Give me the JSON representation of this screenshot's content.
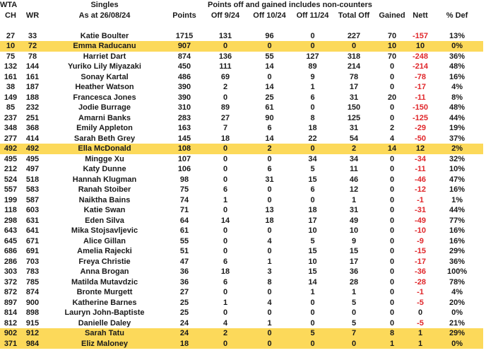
{
  "header": {
    "wta": "WTA",
    "singles": "Singles",
    "note": "Points off and gained includes non-counters",
    "columns": [
      "CH",
      "WR",
      "As at 26/08/24",
      "Points",
      "Off 9/24",
      "Off 10/24",
      "Off 11/24",
      "Total Off",
      "Gained",
      "Nett",
      "% Def"
    ]
  },
  "highlight_color": "#fcd95a",
  "negative_color": "#e0262a",
  "rows": [
    {
      "cells": [
        "27",
        "33",
        "Katie Boulter",
        "1715",
        "131",
        "96",
        "0",
        "227",
        "70",
        "-157",
        "13%"
      ],
      "highlight": false
    },
    {
      "cells": [
        "10",
        "72",
        "Emma Raducanu",
        "907",
        "0",
        "0",
        "0",
        "0",
        "10",
        "10",
        "0%"
      ],
      "highlight": true
    },
    {
      "cells": [
        "75",
        "78",
        "Harriet Dart",
        "874",
        "136",
        "55",
        "127",
        "318",
        "70",
        "-248",
        "36%"
      ],
      "highlight": false
    },
    {
      "cells": [
        "132",
        "144",
        "Yuriko Lily Miyazaki",
        "450",
        "111",
        "14",
        "89",
        "214",
        "0",
        "-214",
        "48%"
      ],
      "highlight": false
    },
    {
      "cells": [
        "161",
        "161",
        "Sonay Kartal",
        "486",
        "69",
        "0",
        "9",
        "78",
        "0",
        "-78",
        "16%"
      ],
      "highlight": false
    },
    {
      "cells": [
        "38",
        "187",
        "Heather Watson",
        "390",
        "2",
        "14",
        "1",
        "17",
        "0",
        "-17",
        "4%"
      ],
      "highlight": false
    },
    {
      "cells": [
        "149",
        "188",
        "Francesca Jones",
        "390",
        "0",
        "25",
        "6",
        "31",
        "20",
        "-11",
        "8%"
      ],
      "highlight": false
    },
    {
      "cells": [
        "85",
        "232",
        "Jodie Burrage",
        "310",
        "89",
        "61",
        "0",
        "150",
        "0",
        "-150",
        "48%"
      ],
      "highlight": false
    },
    {
      "cells": [
        "237",
        "251",
        "Amarni Banks",
        "283",
        "27",
        "90",
        "8",
        "125",
        "0",
        "-125",
        "44%"
      ],
      "highlight": false
    },
    {
      "cells": [
        "348",
        "368",
        "Emily Appleton",
        "163",
        "7",
        "6",
        "18",
        "31",
        "2",
        "-29",
        "19%"
      ],
      "highlight": false
    },
    {
      "cells": [
        "277",
        "414",
        "Sarah Beth Grey",
        "145",
        "18",
        "14",
        "22",
        "54",
        "4",
        "-50",
        "37%"
      ],
      "highlight": false
    },
    {
      "cells": [
        "492",
        "492",
        "Ella McDonald",
        "108",
        "0",
        "2",
        "0",
        "2",
        "14",
        "12",
        "2%"
      ],
      "highlight": true
    },
    {
      "cells": [
        "495",
        "495",
        "Mingge Xu",
        "107",
        "0",
        "0",
        "34",
        "34",
        "0",
        "-34",
        "32%"
      ],
      "highlight": false
    },
    {
      "cells": [
        "212",
        "497",
        "Katy Dunne",
        "106",
        "0",
        "6",
        "5",
        "11",
        "0",
        "-11",
        "10%"
      ],
      "highlight": false
    },
    {
      "cells": [
        "524",
        "518",
        "Hannah Klugman",
        "98",
        "0",
        "31",
        "15",
        "46",
        "0",
        "-46",
        "47%"
      ],
      "highlight": false
    },
    {
      "cells": [
        "557",
        "583",
        "Ranah Stoiber",
        "75",
        "6",
        "0",
        "6",
        "12",
        "0",
        "-12",
        "16%"
      ],
      "highlight": false
    },
    {
      "cells": [
        "199",
        "587",
        "Naiktha Bains",
        "74",
        "1",
        "0",
        "0",
        "1",
        "0",
        "-1",
        "1%"
      ],
      "highlight": false
    },
    {
      "cells": [
        "118",
        "603",
        "Katie Swan",
        "71",
        "0",
        "13",
        "18",
        "31",
        "0",
        "-31",
        "44%"
      ],
      "highlight": false
    },
    {
      "cells": [
        "298",
        "631",
        "Eden Silva",
        "64",
        "14",
        "18",
        "17",
        "49",
        "0",
        "-49",
        "77%"
      ],
      "highlight": false
    },
    {
      "cells": [
        "643",
        "641",
        "Mika Stojsavljevic",
        "61",
        "0",
        "0",
        "10",
        "10",
        "0",
        "-10",
        "16%"
      ],
      "highlight": false
    },
    {
      "cells": [
        "645",
        "671",
        "Alice Gillan",
        "55",
        "0",
        "4",
        "5",
        "9",
        "0",
        "-9",
        "16%"
      ],
      "highlight": false
    },
    {
      "cells": [
        "686",
        "691",
        "Amelia Rajecki",
        "51",
        "0",
        "0",
        "15",
        "15",
        "0",
        "-15",
        "29%"
      ],
      "highlight": false
    },
    {
      "cells": [
        "286",
        "703",
        "Freya Christie",
        "47",
        "6",
        "1",
        "10",
        "17",
        "0",
        "-17",
        "36%"
      ],
      "highlight": false
    },
    {
      "cells": [
        "303",
        "783",
        "Anna Brogan",
        "36",
        "18",
        "3",
        "15",
        "36",
        "0",
        "-36",
        "100%"
      ],
      "highlight": false
    },
    {
      "cells": [
        "372",
        "785",
        "Matilda Mutavdzic",
        "36",
        "6",
        "8",
        "14",
        "28",
        "0",
        "-28",
        "78%"
      ],
      "highlight": false
    },
    {
      "cells": [
        "872",
        "874",
        "Bronte Murgett",
        "27",
        "0",
        "0",
        "1",
        "1",
        "0",
        "-1",
        "4%"
      ],
      "highlight": false
    },
    {
      "cells": [
        "897",
        "900",
        "Katherine Barnes",
        "25",
        "1",
        "4",
        "0",
        "5",
        "0",
        "-5",
        "20%"
      ],
      "highlight": false
    },
    {
      "cells": [
        "814",
        "898",
        "Lauryn John-Baptiste",
        "25",
        "0",
        "0",
        "0",
        "0",
        "0",
        "0",
        "0%"
      ],
      "highlight": false
    },
    {
      "cells": [
        "812",
        "915",
        "Danielle Daley",
        "24",
        "4",
        "1",
        "0",
        "5",
        "0",
        "-5",
        "21%"
      ],
      "highlight": false
    },
    {
      "cells": [
        "902",
        "912",
        "Sarah Tatu",
        "24",
        "2",
        "0",
        "5",
        "7",
        "8",
        "1",
        "29%"
      ],
      "highlight": true
    },
    {
      "cells": [
        "371",
        "984",
        "Eliz Maloney",
        "18",
        "0",
        "0",
        "0",
        "0",
        "1",
        "1",
        "0%"
      ],
      "highlight": true
    }
  ]
}
